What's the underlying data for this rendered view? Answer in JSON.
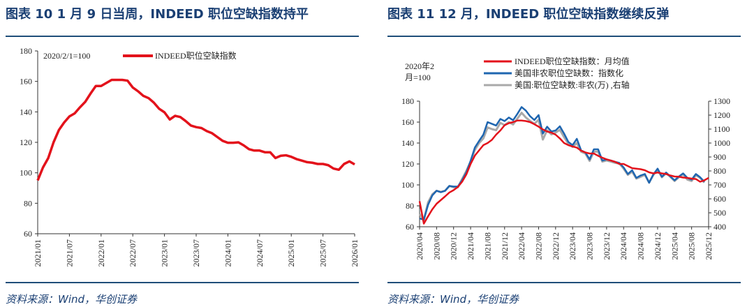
{
  "left": {
    "title": "图表 10   1 月 9 日当周，INDEED 职位空缺指数持平",
    "source": "资料来源：Wind，华创证券"
  },
  "right": {
    "title": "图表 11   12 月，INDEED 职位空缺指数继续反弹",
    "source": "资料来源：Wind，华创证券"
  },
  "colors": {
    "red": "#e3121b",
    "blue": "#1f66b0",
    "gray": "#a9a9a9",
    "navy": "#1f4e79"
  },
  "chart_data": [
    {
      "type": "line",
      "title": "1 月 9 日当周，INDEED 职位空缺指数持平",
      "annotation": "2020/2/1=100",
      "ylim": [
        60,
        180
      ],
      "yticks": [
        "180",
        "160",
        "140",
        "120",
        "100",
        "80",
        "60"
      ],
      "xticks": [
        "2021/01",
        "2021/07",
        "2022/01",
        "2022/07",
        "2023/01",
        "2023/07",
        "2024/01",
        "2024/07",
        "2025/01",
        "2025/07",
        "2026/01"
      ],
      "x_start": "2021/01",
      "x_step": "month",
      "legend": "top-center",
      "series": [
        {
          "name": "INDEED职位空缺指数",
          "color": "#e3121b",
          "values": [
            95,
            103.5,
            109.7,
            120,
            128,
            133,
            137,
            139,
            143,
            146.6,
            152,
            157,
            157,
            159,
            161,
            161,
            161,
            160.5,
            156,
            153.5,
            150.5,
            149,
            146,
            142,
            139.7,
            135,
            137.4,
            136.6,
            134,
            131,
            130,
            129.4,
            127.4,
            126,
            123.5,
            121,
            119.7,
            119.7,
            120,
            118,
            115.5,
            114.6,
            114.6,
            113.5,
            113.5,
            109.7,
            111.2,
            111.5,
            110.5,
            109,
            108,
            107,
            106.6,
            105.8,
            105.8,
            105,
            102.8,
            102,
            105.8,
            107.5,
            105.5
          ]
        }
      ]
    },
    {
      "type": "line",
      "title": "12 月，INDEED 职位空缺指数继续反弹",
      "annotation": [
        "2020年2",
        "月=100"
      ],
      "ylim": [
        60,
        180
      ],
      "y2lim": [
        400,
        1300
      ],
      "yticks": [
        "180",
        "160",
        "140",
        "120",
        "100",
        "80",
        "60"
      ],
      "y2ticks": [
        "1300",
        "1200",
        "1100",
        "1000",
        "900",
        "800",
        "700",
        "600",
        "500",
        "400"
      ],
      "xticks": [
        "2020/04",
        "2020/08",
        "2020/12",
        "2021/04",
        "2021/08",
        "2021/12",
        "2022/04",
        "2022/08",
        "2022/12",
        "2023/04",
        "2023/08",
        "2023/12",
        "2024/04",
        "2024/08",
        "2024/12",
        "2025/04",
        "2025/08",
        "2025/12"
      ],
      "x_start": "2020/04",
      "x_step": "month",
      "legend": "top-center",
      "series": [
        {
          "name": "INDEED职位空缺指数：月均值",
          "axis": "left",
          "color": "#e3121b",
          "values": [
            84.4,
            63,
            70,
            76.7,
            82,
            85.5,
            89,
            92.7,
            95,
            98,
            103,
            110,
            120,
            128,
            133,
            138,
            140,
            143,
            148,
            152,
            157,
            159,
            160,
            161.5,
            161.5,
            161,
            160,
            158,
            155.6,
            153,
            151,
            150,
            148,
            144.4,
            140,
            138,
            136.7,
            135.6,
            132.7,
            131,
            130,
            130,
            127.8,
            126,
            124.4,
            123.3,
            122,
            120,
            120,
            118,
            116,
            115.5,
            115,
            114,
            112,
            111,
            111.8,
            111,
            110.4,
            109,
            108,
            107.8,
            107,
            106.7,
            106,
            105.6,
            103,
            104.4,
            106.7
          ]
        },
        {
          "name": "美国非农职位空缺数：指数化",
          "axis": "left",
          "color": "#1f66b0",
          "values": [
            68,
            66.7,
            81,
            90,
            94.4,
            93,
            94.4,
            99,
            98.4,
            98.4,
            104.4,
            112,
            123,
            135.6,
            142,
            148,
            160,
            158.4,
            156.7,
            163,
            161,
            164.4,
            161.8,
            167.8,
            174.4,
            171,
            165.6,
            162,
            166.7,
            149,
            155.6,
            151,
            152,
            156,
            149,
            141,
            138,
            144,
            133,
            131,
            124.4,
            134,
            134,
            123.3,
            124.4,
            123.3,
            122,
            121,
            116.7,
            110.4,
            114,
            106.7,
            109,
            110.4,
            102,
            110,
            115.5,
            107.8,
            111.8,
            108,
            104.4,
            108,
            111,
            106.7,
            105,
            110.4,
            107.3,
            103
          ]
        },
        {
          "name": "美国:职位空缺数:非农(万)  ,右轴",
          "axis": "right",
          "color": "#a9a9a9",
          "values": [
            492,
            450,
            575,
            633,
            658,
            650,
            658,
            692,
            683,
            683,
            742,
            800,
            867,
            950,
            1000,
            1033,
            1112,
            1100,
            1092,
            1145,
            1128,
            1150,
            1133,
            1175,
            1217,
            1183,
            1158,
            1138,
            1167,
            1025,
            1092,
            1062,
            1075,
            1095,
            1042,
            995,
            972,
            1000,
            938,
            925,
            872,
            938,
            938,
            867,
            875,
            867,
            858,
            853,
            817,
            772,
            795,
            745,
            758,
            772,
            717,
            772,
            808,
            755,
            783,
            758,
            728,
            755,
            775,
            738,
            728,
            770,
            750,
            717
          ]
        }
      ]
    }
  ]
}
